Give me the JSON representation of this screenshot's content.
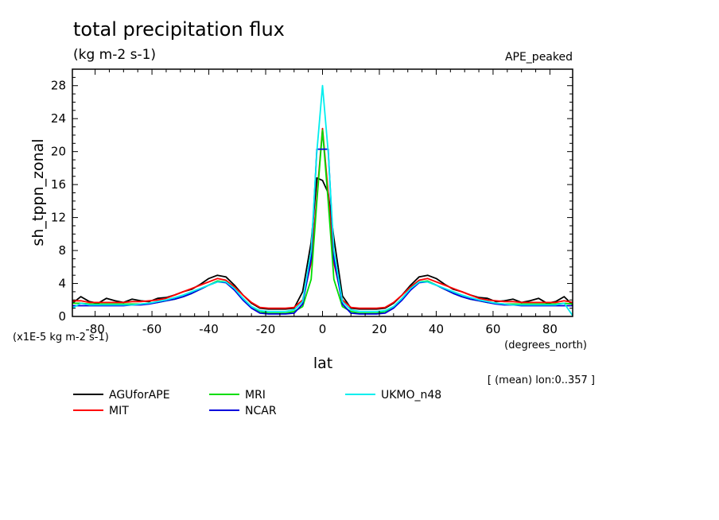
{
  "chart_data": {
    "type": "line",
    "title": "total precipitation flux",
    "subtitle": "(kg m-2 s-1)",
    "experiment": "APE_peaked",
    "ylabel": "sh_tppn_zonal",
    "xlabel": "lat",
    "x_units": "(degrees_north)",
    "y_scale_note": "(x1E-5 kg m-2 s-1)",
    "averaging_note": "[ (mean) lon:0..357 ]",
    "xlim": [
      -88,
      88
    ],
    "ylim": [
      0,
      30
    ],
    "xticks": [
      -80,
      -60,
      -40,
      -20,
      0,
      20,
      40,
      60,
      80
    ],
    "xtick_labels": [
      "-80",
      "-60",
      "-40",
      "-20",
      "0",
      "20",
      "40",
      "60",
      "80"
    ],
    "yticks": [
      0,
      4,
      8,
      12,
      16,
      20,
      24,
      28
    ],
    "ytick_labels": [
      "0",
      "4",
      "8",
      "12",
      "16",
      "20",
      "24",
      "28"
    ],
    "legend_position": "below",
    "series": [
      {
        "name": "AGUforAPE",
        "color": "#000000",
        "x": [
          -88,
          -85,
          -82,
          -79,
          -76,
          -73,
          -70,
          -67,
          -64,
          -61,
          -58,
          -55,
          -52,
          -49,
          -46,
          -43,
          -40,
          -37,
          -34,
          -31,
          -28,
          -25,
          -22,
          -19,
          -16,
          -13,
          -10,
          -7,
          -4,
          -2,
          0,
          2,
          4,
          7,
          10,
          13,
          16,
          19,
          22,
          25,
          28,
          31,
          34,
          37,
          40,
          43,
          46,
          49,
          52,
          55,
          58,
          61,
          64,
          67,
          70,
          73,
          76,
          79,
          82,
          85,
          88
        ],
        "y": [
          1.6,
          2.4,
          1.8,
          1.6,
          2.2,
          1.9,
          1.7,
          2.1,
          1.9,
          1.8,
          2.2,
          2.3,
          2.6,
          3.0,
          3.3,
          3.9,
          4.6,
          5.0,
          4.8,
          3.8,
          2.6,
          1.6,
          1.0,
          0.9,
          0.9,
          0.9,
          1.0,
          3.0,
          9.0,
          16.8,
          16.5,
          15.0,
          9.5,
          2.5,
          1.0,
          0.9,
          0.9,
          0.9,
          1.0,
          1.6,
          2.6,
          3.8,
          4.8,
          5.0,
          4.6,
          3.9,
          3.3,
          3.0,
          2.6,
          2.3,
          2.2,
          1.8,
          1.9,
          2.1,
          1.7,
          1.9,
          2.2,
          1.6,
          1.8,
          2.4,
          1.4
        ]
      },
      {
        "name": "MIT",
        "color": "#ff0000",
        "x": [
          -88,
          -85,
          -82,
          -79,
          -76,
          -73,
          -70,
          -67,
          -64,
          -61,
          -58,
          -55,
          -52,
          -49,
          -46,
          -43,
          -40,
          -37,
          -34,
          -31,
          -28,
          -25,
          -22,
          -19,
          -16,
          -13,
          -10,
          -7,
          -4,
          -2,
          0,
          2,
          4,
          7,
          10,
          13,
          16,
          19,
          22,
          25,
          28,
          31,
          34,
          37,
          40,
          43,
          46,
          49,
          52,
          55,
          58,
          61,
          64,
          67,
          70,
          73,
          76,
          79,
          82,
          85,
          88
        ],
        "y": [
          1.9,
          1.9,
          1.7,
          1.7,
          1.7,
          1.7,
          1.7,
          1.8,
          1.8,
          1.9,
          2.0,
          2.2,
          2.6,
          3.0,
          3.4,
          3.8,
          4.2,
          4.6,
          4.4,
          3.6,
          2.6,
          1.7,
          1.1,
          1.0,
          1.0,
          1.0,
          1.1,
          2.0,
          6.5,
          14.5,
          22.8,
          15.0,
          6.5,
          2.0,
          1.1,
          1.0,
          1.0,
          1.0,
          1.1,
          1.7,
          2.6,
          3.6,
          4.4,
          4.6,
          4.2,
          3.8,
          3.4,
          3.0,
          2.6,
          2.2,
          2.0,
          1.9,
          1.8,
          1.8,
          1.7,
          1.7,
          1.7,
          1.7,
          1.7,
          1.9,
          1.7
        ]
      },
      {
        "name": "MRI",
        "color": "#00dd00",
        "x": [
          -88,
          -85,
          -82,
          -79,
          -76,
          -73,
          -70,
          -67,
          -64,
          -61,
          -58,
          -55,
          -52,
          -49,
          -46,
          -43,
          -40,
          -37,
          -34,
          -31,
          -28,
          -25,
          -22,
          -19,
          -16,
          -13,
          -10,
          -7,
          -4,
          -2,
          0,
          2,
          4,
          7,
          10,
          13,
          16,
          19,
          22,
          25,
          28,
          31,
          34,
          37,
          40,
          43,
          46,
          49,
          52,
          55,
          58,
          61,
          64,
          67,
          70,
          73,
          76,
          79,
          82,
          85,
          88
        ],
        "y": [
          1.6,
          1.6,
          1.5,
          1.5,
          1.5,
          1.5,
          1.5,
          1.5,
          1.5,
          1.6,
          1.7,
          1.9,
          2.1,
          2.4,
          2.8,
          3.3,
          3.8,
          4.3,
          4.2,
          3.4,
          2.2,
          1.2,
          0.6,
          0.4,
          0.4,
          0.4,
          0.6,
          1.2,
          4.5,
          14.0,
          22.6,
          14.0,
          4.5,
          1.2,
          0.6,
          0.4,
          0.4,
          0.4,
          0.6,
          1.2,
          2.2,
          3.4,
          4.2,
          4.3,
          3.8,
          3.3,
          2.8,
          2.4,
          2.1,
          1.9,
          1.7,
          1.6,
          1.5,
          1.5,
          1.5,
          1.5,
          1.5,
          1.5,
          1.5,
          1.6,
          1.5
        ]
      },
      {
        "name": "NCAR",
        "color": "#0000dd",
        "x": [
          -88,
          -85,
          -82,
          -79,
          -76,
          -73,
          -70,
          -67,
          -64,
          -61,
          -58,
          -55,
          -52,
          -49,
          -46,
          -43,
          -40,
          -37,
          -34,
          -31,
          -28,
          -25,
          -22,
          -19,
          -16,
          -13,
          -10,
          -7,
          -4,
          -2,
          0,
          2,
          4,
          7,
          10,
          13,
          16,
          19,
          22,
          25,
          28,
          31,
          34,
          37,
          40,
          43,
          46,
          49,
          52,
          55,
          58,
          61,
          64,
          67,
          70,
          73,
          76,
          79,
          82,
          85,
          88
        ],
        "y": [
          1.3,
          1.3,
          1.3,
          1.3,
          1.3,
          1.3,
          1.3,
          1.4,
          1.4,
          1.5,
          1.7,
          1.9,
          2.1,
          2.4,
          2.8,
          3.3,
          3.8,
          4.2,
          4.1,
          3.2,
          2.0,
          1.0,
          0.4,
          0.3,
          0.3,
          0.3,
          0.4,
          1.5,
          7.0,
          20.3,
          20.3,
          20.3,
          7.0,
          1.5,
          0.4,
          0.3,
          0.3,
          0.3,
          0.4,
          1.0,
          2.0,
          3.2,
          4.1,
          4.2,
          3.8,
          3.3,
          2.8,
          2.4,
          2.1,
          1.9,
          1.7,
          1.5,
          1.4,
          1.4,
          1.3,
          1.3,
          1.3,
          1.3,
          1.3,
          1.3,
          1.3
        ]
      },
      {
        "name": "UKMO_n48",
        "color": "#00eeee",
        "x": [
          -88,
          -85,
          -82,
          -79,
          -76,
          -73,
          -70,
          -67,
          -64,
          -61,
          -58,
          -55,
          -52,
          -49,
          -46,
          -43,
          -40,
          -37,
          -34,
          -31,
          -28,
          -25,
          -22,
          -19,
          -16,
          -13,
          -10,
          -7,
          -4,
          -2,
          0,
          2,
          4,
          7,
          10,
          13,
          16,
          19,
          22,
          25,
          28,
          31,
          34,
          37,
          40,
          43,
          46,
          49,
          52,
          55,
          58,
          61,
          64,
          67,
          70,
          73,
          76,
          79,
          82,
          85,
          88
        ],
        "y": [
          1.0,
          1.6,
          1.4,
          1.4,
          1.4,
          1.4,
          1.4,
          1.4,
          1.5,
          1.6,
          1.8,
          2.0,
          2.3,
          2.6,
          3.0,
          3.4,
          3.8,
          4.2,
          4.2,
          3.4,
          2.2,
          1.2,
          0.7,
          0.6,
          0.6,
          0.6,
          0.8,
          1.8,
          8.0,
          20.0,
          28.0,
          20.0,
          8.0,
          1.8,
          0.8,
          0.6,
          0.6,
          0.6,
          0.7,
          1.2,
          2.2,
          3.4,
          4.2,
          4.2,
          3.8,
          3.4,
          3.0,
          2.6,
          2.3,
          2.0,
          1.8,
          1.6,
          1.5,
          1.4,
          1.4,
          1.4,
          1.4,
          1.4,
          1.4,
          1.6,
          0.1
        ]
      }
    ]
  }
}
